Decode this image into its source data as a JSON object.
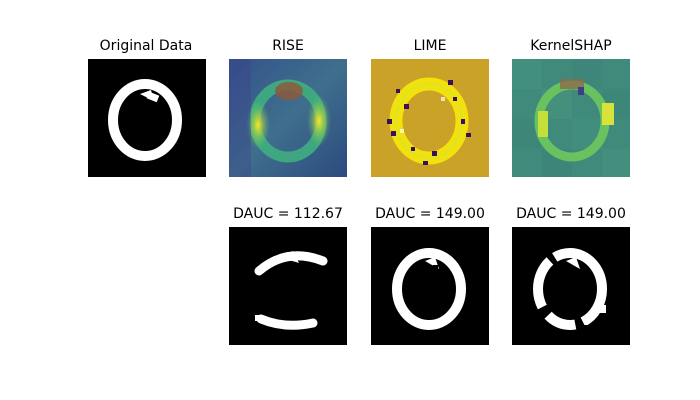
{
  "chart_data": {
    "type": "image-grid",
    "rows": 2,
    "columns": 4,
    "panels": [
      {
        "id": "original",
        "title": "Original Data",
        "row": 0,
        "col": 0,
        "colormap": "gray"
      },
      {
        "id": "rise",
        "title": "RISE",
        "row": 0,
        "col": 1,
        "colormap": "viridis"
      },
      {
        "id": "lime",
        "title": "LIME",
        "row": 0,
        "col": 2,
        "colormap": "viridis"
      },
      {
        "id": "kernelshap",
        "title": "KernelSHAP",
        "row": 0,
        "col": 3,
        "colormap": "viridis"
      },
      {
        "id": "rise-masked",
        "title": "DAUC = 112.67",
        "row": 1,
        "col": 1,
        "colormap": "gray"
      },
      {
        "id": "lime-masked",
        "title": "DAUC = 149.00",
        "row": 1,
        "col": 2,
        "colormap": "gray"
      },
      {
        "id": "kernelshap-masked",
        "title": "DAUC = 149.00",
        "row": 1,
        "col": 3,
        "colormap": "gray"
      }
    ],
    "colors": {
      "background_black": "#000000",
      "digit_white": "#ffffff",
      "viridis_dark": "#3b4d8a",
      "viridis_mid": "#2a9d8f",
      "viridis_green": "#5ec962",
      "viridis_yellow": "#fde725",
      "lime_background": "#c9a227",
      "lime_dark": "#3b0f5a",
      "shap_background": "#3f8a7a",
      "hotspot_brown": "#8c5a3c"
    }
  }
}
